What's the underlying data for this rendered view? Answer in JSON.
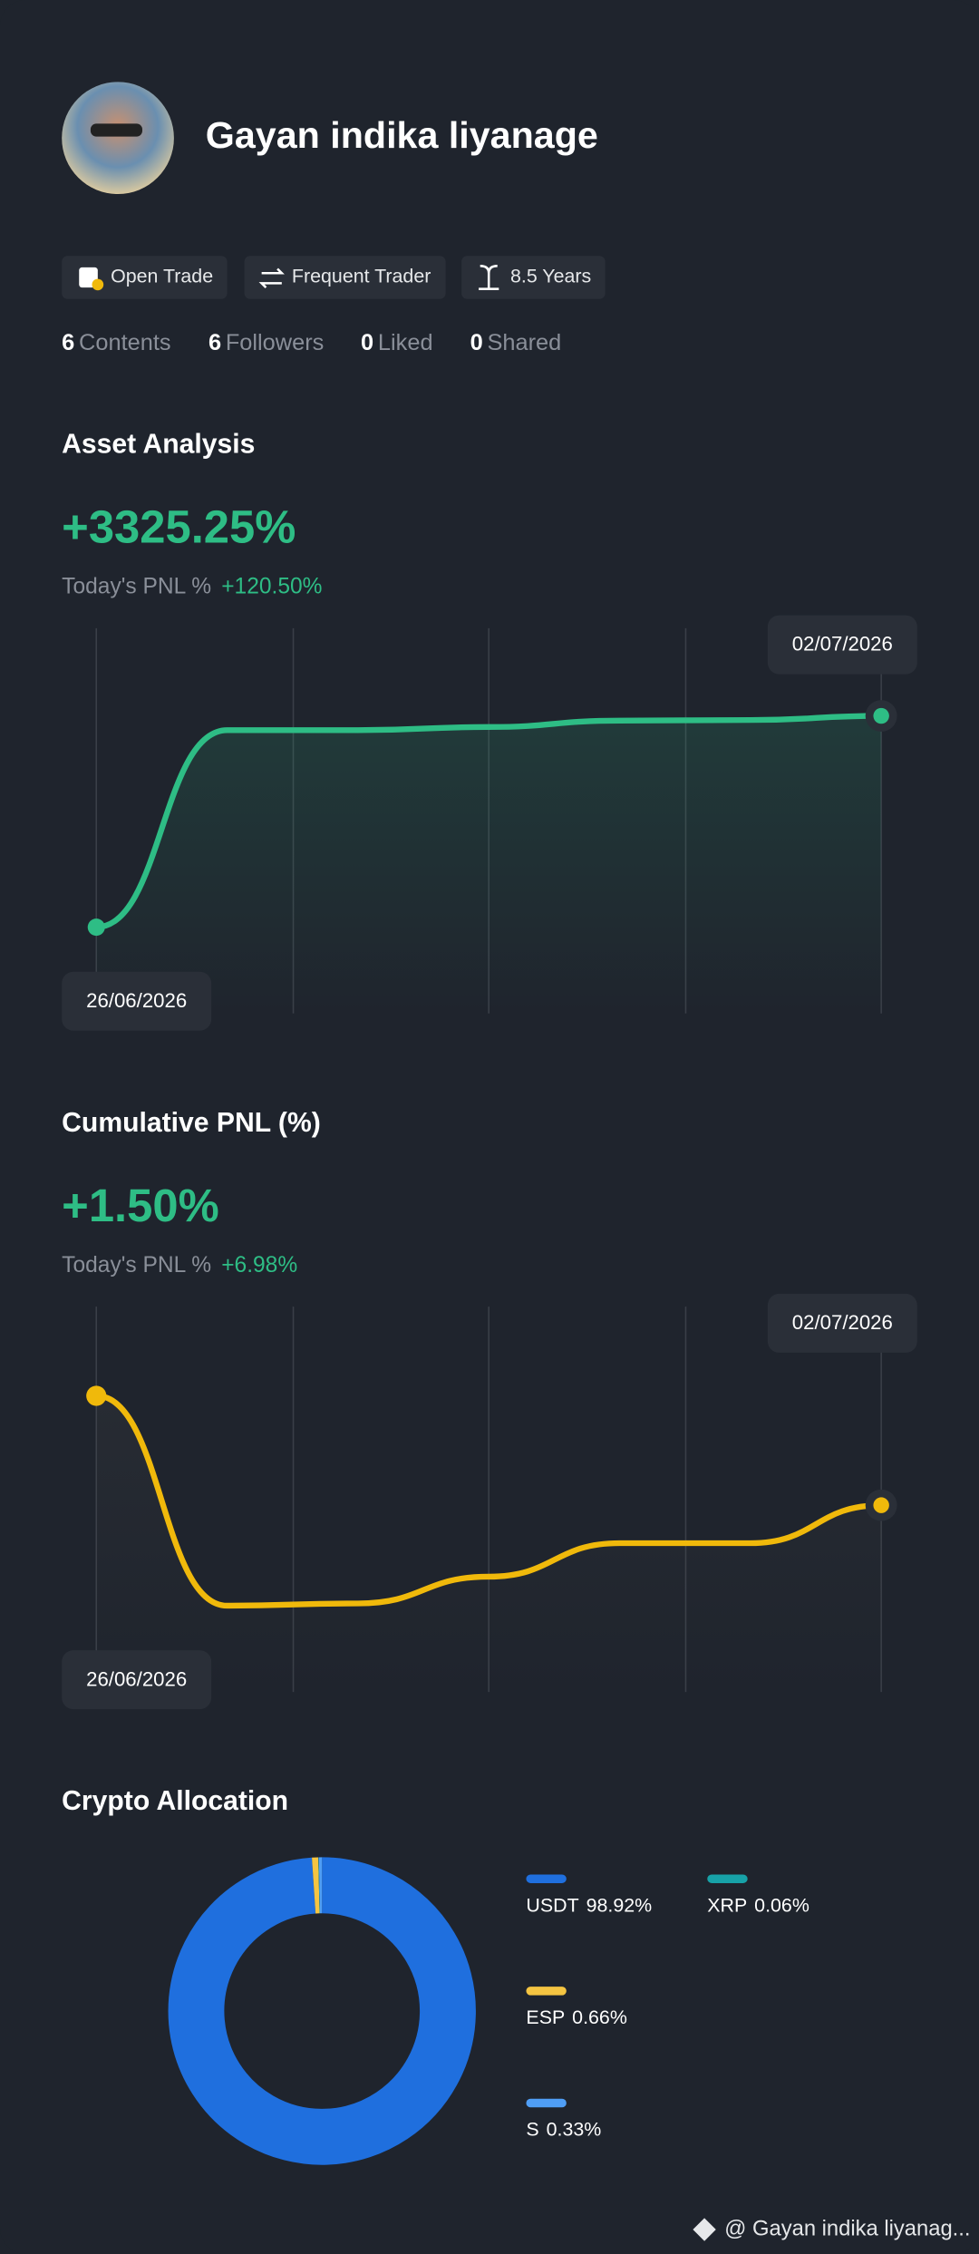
{
  "profile": {
    "name": "Gayan indika liyanage",
    "badges": [
      "Open Trade",
      "Frequent Trader",
      "8.5 Years"
    ],
    "stats": [
      {
        "count": 6,
        "label": "Contents"
      },
      {
        "count": 6,
        "label": "Followers"
      },
      {
        "count": 0,
        "label": "Liked"
      },
      {
        "count": 0,
        "label": "Shared"
      }
    ]
  },
  "chart_data": [
    {
      "type": "line",
      "title": "Asset Analysis",
      "headline": "+3325.25%",
      "pnl_label": "Today's PNL %",
      "pnl_value": "+120.50%",
      "categories": [
        "26/06/2026",
        null,
        null,
        null,
        null,
        null,
        "02/07/2026"
      ],
      "values": [
        0,
        3100,
        3100,
        3150,
        3250,
        3260,
        3325.25
      ],
      "color": "#2ebd85"
    },
    {
      "type": "line",
      "title": "Cumulative PNL (%)",
      "headline": "+1.50%",
      "pnl_label": "Today's PNL %",
      "pnl_value": "+6.98%",
      "categories": [
        "26/06/2026",
        null,
        null,
        null,
        null,
        null,
        "02/07/2026"
      ],
      "values": [
        6.4,
        -3,
        -2.9,
        -1.7,
        -0.2,
        -0.2,
        1.5
      ],
      "color": "#f0b90b"
    },
    {
      "type": "donut",
      "title": "Crypto Allocation",
      "categories": [
        "USDT",
        "XRP",
        "ESP",
        "S"
      ],
      "values": [
        98.92,
        0.06,
        0.66,
        0.33
      ],
      "value_labels": [
        "98.92%",
        "0.06%",
        "0.66%",
        "0.33%"
      ],
      "colors": [
        "#1f6fde",
        "#17a2a8",
        "#f5c542",
        "#4f9ef5"
      ]
    }
  ],
  "footer": "@ Gayan indika liyanag..."
}
